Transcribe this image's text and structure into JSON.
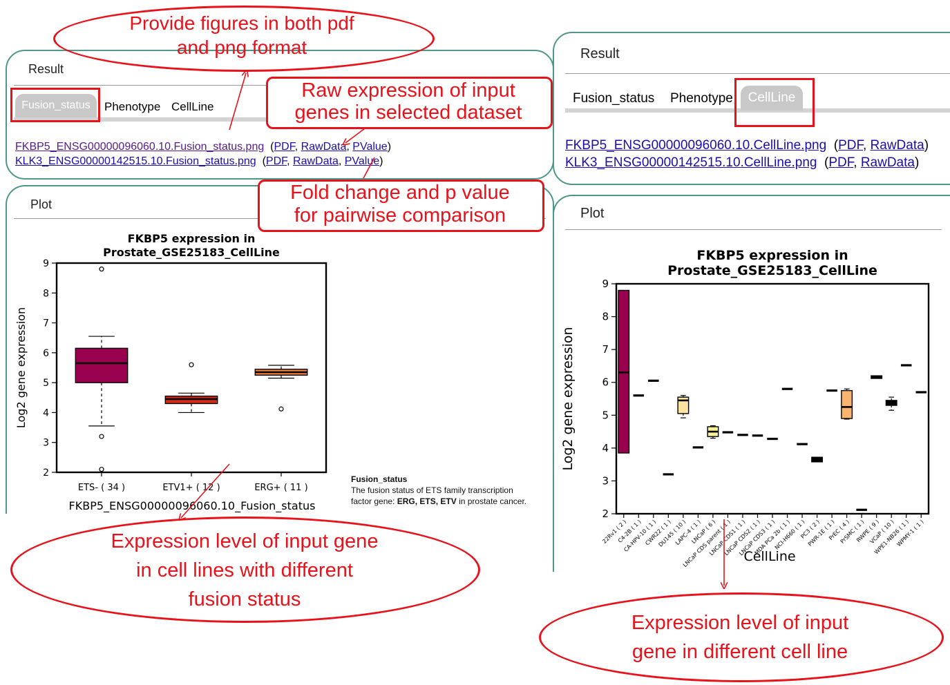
{
  "colors": {
    "accent_red": "#e8121b",
    "panel_border": "#4e958a",
    "link": "#1a0dab",
    "visited": "#551a8b",
    "box_ets_neg": "#99004d",
    "box_etv1": "#d62b16",
    "box_erg": "#f07c3c"
  },
  "left": {
    "result_title": "Result",
    "tabs": [
      "Fusion_status",
      "Phenotype",
      "CellLine"
    ],
    "active_tab": "Fusion_status",
    "links": [
      {
        "file": "FKBP5_ENSG00000096060.10.Fusion_status.png",
        "pdf": "PDF",
        "raw": "RawData",
        "pvalue": "PValue"
      },
      {
        "file": "KLK3_ENSG00000142515.10.Fusion_status.png",
        "pdf": "PDF",
        "raw": "RawData",
        "pvalue": "PValue"
      }
    ],
    "plot_title": "Plot",
    "legend_title": "Fusion_status",
    "legend_text_1": "The fusion status of ETS family transcription",
    "legend_text_2_prefix": "factor gene: ",
    "legend_text_2_bold": "ERG, ETS, ETV",
    "legend_text_2_suffix": " in prostate cancer."
  },
  "right": {
    "result_title": "Result",
    "tabs": [
      "Fusion_status",
      "Phenotype",
      "CellLine"
    ],
    "active_tab": "CellLine",
    "links": [
      {
        "file": "FKBP5_ENSG00000096060.10.CellLine.png",
        "pdf": "PDF",
        "raw": "RawData"
      },
      {
        "file": "KLK3_ENSG00000142515.10.CellLine.png",
        "pdf": "PDF",
        "raw": "RawData"
      }
    ],
    "plot_title": "Plot"
  },
  "callouts": {
    "formats": "Provide figures in both pdf and png format",
    "raw_expr_1": "Raw expression of input",
    "raw_expr_2": "genes in selected dataset",
    "fold_1": "Fold change and p value",
    "fold_2": "for pairwise comparison",
    "left_expr_1": "Expression level of input gene",
    "left_expr_2": "in cell lines with different",
    "left_expr_3": "fusion status",
    "right_expr_1": "Expression level of input",
    "right_expr_2": "gene in different cell line"
  },
  "chart_data": [
    {
      "type": "box",
      "title_1": "FKBP5 expression in",
      "title_2": "Prostate_GSE25183_CellLine",
      "xlabel": "FKBP5_ENSG00000096060.10_Fusion_status",
      "ylabel": "Log2 gene expression",
      "ylim": [
        2,
        9
      ],
      "yticks": [
        2,
        3,
        4,
        5,
        6,
        7,
        8,
        9
      ],
      "categories": [
        "ETS- ( 34 )",
        "ETV1+ ( 12 )",
        "ERG+ ( 11 )"
      ],
      "boxes": [
        {
          "whislo": 3.55,
          "q1": 5.0,
          "med": 5.65,
          "q3": 6.15,
          "whishi": 6.55,
          "fliers": [
            8.8,
            3.2,
            2.1
          ],
          "color": "#99004d"
        },
        {
          "whislo": 4.0,
          "q1": 4.3,
          "med": 4.45,
          "q3": 4.55,
          "whishi": 4.65,
          "fliers": [
            5.6
          ],
          "color": "#d62b16"
        },
        {
          "whislo": 5.15,
          "q1": 5.25,
          "med": 5.35,
          "q3": 5.45,
          "whishi": 5.58,
          "fliers": [
            4.12
          ],
          "color": "#f07c3c"
        }
      ]
    },
    {
      "type": "box",
      "title_1": "FKBP5 expression in",
      "title_2": "Prostate_GSE25183_CellLine",
      "xlabel": "CellLine",
      "ylabel": "Log2 gene expression",
      "ylim": [
        2,
        9
      ],
      "yticks": [
        2,
        3,
        4,
        5,
        6,
        7,
        8,
        9
      ],
      "categories": [
        "22Rv1 ( 2 )",
        "C4-2B ( 1 )",
        "CA-HPV-10 ( 1 )",
        "CWR22 ( 1 )",
        "DU145 ( 10 )",
        "LAPC-4 ( 1 )",
        "LNCaP ( 6 )",
        "LNCaP CDS parent ( 1 )",
        "LNCaP CDS1 ( 1 )",
        "LNCaP CDS2 ( 1 )",
        "LNCaP CDS3 ( 1 )",
        "MDA PCa 2b ( 1 )",
        "NCI-H660 ( 1 )",
        "PC3 ( 2 )",
        "PWR-1E ( 1 )",
        "PrEC ( 4 )",
        "PrSMC ( 1 )",
        "RWPE ( 9 )",
        "VCaP ( 10 )",
        "WPE1-NB26 ( 1 )",
        "WPMY-1 ( 1 )"
      ],
      "boxes": [
        {
          "q1": 3.85,
          "med": 6.3,
          "q3": 8.8,
          "color": "#99004d"
        },
        {
          "q1": 5.6,
          "med": 5.6,
          "q3": 5.6,
          "color": "#000000"
        },
        {
          "q1": 6.05,
          "med": 6.05,
          "q3": 6.05,
          "color": "#000000"
        },
        {
          "q1": 3.2,
          "med": 3.2,
          "q3": 3.2,
          "color": "#000000"
        },
        {
          "whislo": 4.92,
          "q1": 5.05,
          "med": 5.45,
          "q3": 5.55,
          "whishi": 5.6,
          "color": "#fde3a0"
        },
        {
          "q1": 4.02,
          "med": 4.02,
          "q3": 4.02,
          "color": "#000000"
        },
        {
          "whislo": 4.3,
          "q1": 4.35,
          "med": 4.5,
          "q3": 4.65,
          "whishi": 4.68,
          "color": "#f6f29a"
        },
        {
          "q1": 4.48,
          "med": 4.48,
          "q3": 4.48,
          "color": "#000000"
        },
        {
          "q1": 4.4,
          "med": 4.4,
          "q3": 4.4,
          "color": "#000000"
        },
        {
          "q1": 4.38,
          "med": 4.38,
          "q3": 4.38,
          "color": "#000000"
        },
        {
          "q1": 4.28,
          "med": 4.28,
          "q3": 4.28,
          "color": "#000000"
        },
        {
          "q1": 5.8,
          "med": 5.8,
          "q3": 5.8,
          "color": "#000000"
        },
        {
          "q1": 4.12,
          "med": 4.12,
          "q3": 4.12,
          "color": "#000000"
        },
        {
          "q1": 3.58,
          "med": 3.65,
          "q3": 3.72,
          "color": "#000000"
        },
        {
          "q1": 5.75,
          "med": 5.75,
          "q3": 5.75,
          "color": "#000000"
        },
        {
          "whislo": 4.88,
          "q1": 4.9,
          "med": 5.25,
          "q3": 5.75,
          "whishi": 5.8,
          "color": "#f9b56e"
        },
        {
          "q1": 2.12,
          "med": 2.12,
          "q3": 2.12,
          "color": "#000000"
        },
        {
          "q1": 6.12,
          "med": 6.15,
          "q3": 6.2,
          "color": "#000000"
        },
        {
          "whislo": 5.15,
          "q1": 5.3,
          "med": 5.38,
          "q3": 5.45,
          "whishi": 5.55,
          "color": "#000000"
        },
        {
          "q1": 6.52,
          "med": 6.52,
          "q3": 6.52,
          "color": "#000000"
        },
        {
          "q1": 5.7,
          "med": 5.7,
          "q3": 5.7,
          "color": "#000000"
        }
      ]
    }
  ]
}
